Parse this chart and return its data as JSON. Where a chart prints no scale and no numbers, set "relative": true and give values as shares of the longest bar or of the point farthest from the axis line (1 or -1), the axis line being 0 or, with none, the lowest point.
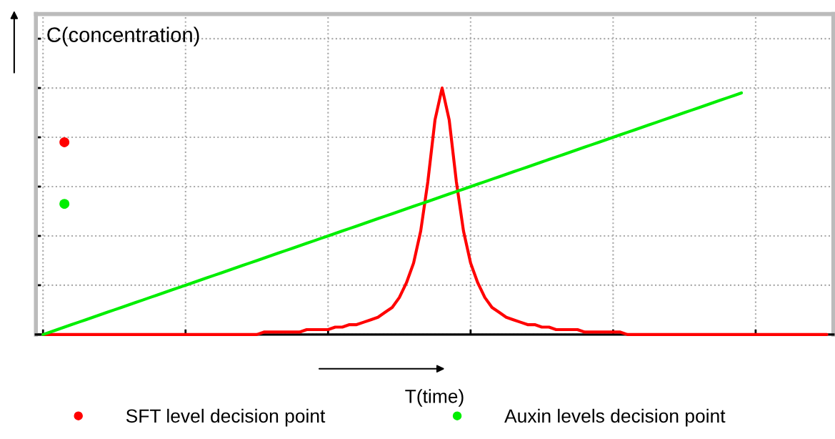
{
  "chart_data": {
    "type": "line",
    "relative": true,
    "xlabel": "T(time)",
    "ylabel": "C(concentration)",
    "grid": true,
    "legend": "bottom",
    "categories": [
      null,
      null,
      null,
      null,
      null,
      null,
      null,
      null,
      null,
      null,
      null,
      null,
      null,
      null,
      null,
      null,
      null,
      null,
      null,
      null,
      null,
      null,
      null,
      null,
      null,
      null,
      null,
      null,
      null,
      null,
      null,
      null,
      null,
      null,
      null,
      null,
      null,
      null,
      null,
      null,
      null,
      null,
      null,
      null,
      null,
      null,
      null,
      null,
      null,
      null,
      null,
      null,
      null,
      null,
      null,
      null,
      null,
      null,
      null,
      null,
      null,
      null,
      null,
      null,
      null,
      null,
      null,
      null,
      null,
      null,
      null,
      null,
      null,
      null,
      null,
      null,
      null,
      null,
      null,
      null,
      null,
      null,
      null,
      null,
      null,
      null,
      null,
      null,
      null,
      null,
      null,
      null,
      null,
      null,
      null,
      null,
      null,
      null,
      null,
      null,
      null,
      null,
      null,
      null,
      null,
      null,
      null,
      null,
      null,
      null,
      null
    ],
    "series": [
      {
        "color": "#ff0000",
        "values": [
          0,
          0,
          0,
          0,
          0,
          0,
          0,
          0,
          0,
          0,
          0,
          0,
          0,
          0,
          0,
          0,
          0,
          0,
          0,
          0,
          0,
          0,
          0,
          0,
          0,
          0,
          0,
          0,
          0,
          0,
          0,
          0.01,
          0.01,
          0.01,
          0.01,
          0.01,
          0.01,
          0.02,
          0.02,
          0.02,
          0.02,
          0.03,
          0.03,
          0.04,
          0.04,
          0.05,
          0.06,
          0.07,
          0.09,
          0.11,
          0.15,
          0.21,
          0.29,
          0.42,
          0.62,
          0.87,
          1,
          0.87,
          0.62,
          0.42,
          0.29,
          0.21,
          0.15,
          0.11,
          0.09,
          0.07,
          0.06,
          0.05,
          0.04,
          0.04,
          0.03,
          0.03,
          0.02,
          0.02,
          0.02,
          0.02,
          0.01,
          0.01,
          0.01,
          0.01,
          0.01,
          0.01,
          0,
          0,
          0,
          0,
          0,
          0,
          0,
          0,
          0,
          0,
          0,
          0,
          0,
          0,
          0,
          0,
          0,
          0,
          0,
          0,
          0,
          0,
          0,
          0,
          0,
          0,
          0,
          0,
          0
        ]
      },
      {
        "color": "#00ee00",
        "values": [
          0,
          0.01,
          0.02,
          0.03,
          0.04,
          0.05,
          0.06,
          0.07,
          0.08,
          0.09,
          0.1,
          0.11,
          0.12,
          0.13,
          0.14,
          0.15,
          0.16,
          0.17,
          0.18,
          0.19,
          0.2,
          0.21,
          0.22,
          0.23,
          0.24,
          0.25,
          0.26,
          0.27,
          0.28,
          0.29,
          0.3,
          0.31,
          0.32,
          0.33,
          0.34,
          0.35,
          0.36,
          0.37,
          0.38,
          0.39,
          0.4,
          0.41,
          0.42,
          0.43,
          0.44,
          0.45,
          0.46,
          0.47,
          0.48,
          0.49,
          0.5,
          0.51,
          0.52,
          0.53,
          0.54,
          0.55,
          0.56,
          0.57,
          0.58,
          0.59,
          0.6,
          0.61,
          0.62,
          0.63,
          0.64,
          0.65,
          0.66,
          0.67,
          0.68,
          0.69,
          0.7,
          0.71,
          0.72,
          0.73,
          0.74,
          0.75,
          0.76,
          0.77,
          0.78,
          0.79,
          0.8,
          0.81,
          0.82,
          0.83,
          0.84,
          0.85,
          0.86,
          0.87,
          0.88,
          0.89,
          0.9,
          0.91,
          0.92,
          0.93,
          0.94,
          0.95,
          0.96,
          0.97,
          0.98,
          null,
          null,
          null,
          null,
          null,
          null,
          null,
          null,
          null,
          null,
          null,
          null
        ]
      },
      {
        "marker": "circle",
        "name": "SFT level decision point",
        "color": "#ff0000",
        "values": [
          null,
          null,
          null,
          0.78,
          null,
          null,
          null,
          null,
          null,
          null,
          null,
          null,
          null,
          null,
          null,
          null,
          null,
          null,
          null,
          null,
          null,
          null,
          null,
          null,
          null,
          null,
          null,
          null,
          null,
          null,
          null,
          null,
          null,
          null,
          null,
          null,
          null,
          null,
          null,
          null,
          null,
          null,
          null,
          null,
          null,
          null,
          null,
          null,
          null,
          null,
          null,
          null,
          null,
          null,
          null,
          null,
          null,
          null,
          null,
          null,
          null,
          null,
          null,
          null,
          null,
          null,
          null,
          null,
          null,
          null,
          null,
          null,
          null,
          null,
          null,
          null,
          null,
          null,
          null,
          null,
          null,
          null,
          null,
          null,
          null,
          null,
          null,
          null,
          null,
          null,
          null,
          null,
          null,
          null,
          null,
          null,
          null,
          null,
          null,
          null,
          null,
          null,
          null,
          null,
          null,
          null,
          null,
          null,
          null,
          null,
          null
        ]
      },
      {
        "marker": "circle",
        "name": "Auxin levels decision point",
        "color": "#00ee00",
        "values": [
          null,
          null,
          null,
          0.53,
          null,
          null,
          null,
          null,
          null,
          null,
          null,
          null,
          null,
          null,
          null,
          null,
          null,
          null,
          null,
          null,
          null,
          null,
          null,
          null,
          null,
          null,
          null,
          null,
          null,
          null,
          null,
          null,
          null,
          null,
          null,
          null,
          null,
          null,
          null,
          null,
          null,
          null,
          null,
          null,
          null,
          null,
          null,
          null,
          null,
          null,
          null,
          null,
          null,
          null,
          null,
          null,
          null,
          null,
          null,
          null,
          null,
          null,
          null,
          null,
          null,
          null,
          null,
          null,
          null,
          null,
          null,
          null,
          null,
          null,
          null,
          null,
          null,
          null,
          null,
          null,
          null,
          null,
          null,
          null,
          null,
          null,
          null,
          null,
          null,
          null,
          null,
          null,
          null,
          null,
          null,
          null,
          null,
          null,
          null,
          null,
          null,
          null,
          null,
          null,
          null,
          null,
          null,
          null,
          null,
          null,
          null
        ]
      }
    ]
  }
}
